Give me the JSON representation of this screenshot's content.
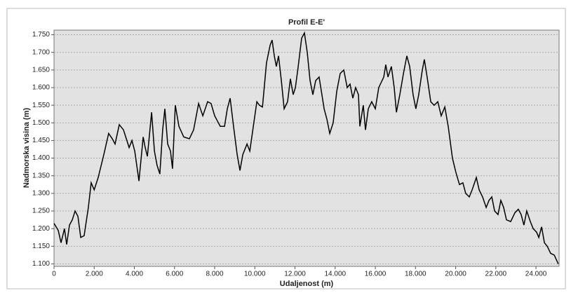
{
  "chart_data": {
    "type": "line",
    "title": "Profil E-E'",
    "xlabel": "Udaljenost (m)",
    "ylabel": "Nadmorska visina (m)",
    "x": [
      0,
      210,
      350,
      520,
      630,
      770,
      910,
      1050,
      1190,
      1330,
      1500,
      1710,
      1850,
      2000,
      2200,
      2480,
      2720,
      2900,
      3040,
      3250,
      3460,
      3740,
      3880,
      4020,
      4230,
      4440,
      4540,
      4650,
      4860,
      5000,
      5130,
      5270,
      5410,
      5520,
      5660,
      5800,
      5900,
      6040,
      6220,
      6460,
      6740,
      6950,
      7200,
      7410,
      7650,
      7820,
      8000,
      8280,
      8490,
      8630,
      8770,
      8940,
      9120,
      9260,
      9400,
      9610,
      9750,
      9950,
      10100,
      10230,
      10380,
      10580,
      10760,
      10860,
      10970,
      11070,
      11180,
      11320,
      11460,
      11630,
      11770,
      11910,
      12020,
      12160,
      12330,
      12470,
      12610,
      12750,
      12890,
      13030,
      13200,
      13340,
      13450,
      13590,
      13730,
      13900,
      14080,
      14250,
      14430,
      14600,
      14740,
      14880,
      15020,
      15160,
      15230,
      15400,
      15510,
      15650,
      15820,
      16000,
      16170,
      16420,
      16520,
      16630,
      16800,
      16940,
      17050,
      17220,
      17400,
      17570,
      17710,
      17880,
      18020,
      18160,
      18340,
      18440,
      18580,
      18760,
      18930,
      19110,
      19280,
      19460,
      19630,
      19840,
      20010,
      20190,
      20360,
      20500,
      20680,
      20820,
      21030,
      21170,
      21340,
      21520,
      21660,
      21800,
      21940,
      22110,
      22250,
      22390,
      22530,
      22740,
      22950,
      23120,
      23260,
      23400,
      23540,
      23720,
      23860,
      24030,
      24140,
      24280,
      24420,
      24560,
      24730,
      24910,
      25110
    ],
    "series": [
      {
        "name": "Profil",
        "color": "#000000",
        "values": [
          1215,
          1195,
          1160,
          1200,
          1155,
          1210,
          1225,
          1250,
          1235,
          1175,
          1180,
          1260,
          1330,
          1310,
          1345,
          1410,
          1470,
          1455,
          1440,
          1495,
          1480,
          1430,
          1450,
          1420,
          1335,
          1460,
          1430,
          1405,
          1530,
          1420,
          1380,
          1355,
          1480,
          1540,
          1440,
          1420,
          1370,
          1550,
          1490,
          1460,
          1455,
          1480,
          1555,
          1520,
          1560,
          1555,
          1520,
          1490,
          1490,
          1540,
          1570,
          1490,
          1410,
          1365,
          1410,
          1440,
          1420,
          1500,
          1560,
          1550,
          1545,
          1670,
          1720,
          1735,
          1690,
          1660,
          1690,
          1620,
          1540,
          1560,
          1625,
          1580,
          1600,
          1660,
          1740,
          1755,
          1700,
          1620,
          1580,
          1620,
          1630,
          1580,
          1540,
          1510,
          1470,
          1500,
          1590,
          1640,
          1650,
          1600,
          1610,
          1570,
          1600,
          1580,
          1490,
          1550,
          1480,
          1540,
          1560,
          1540,
          1600,
          1630,
          1665,
          1630,
          1660,
          1600,
          1530,
          1580,
          1640,
          1690,
          1660,
          1580,
          1540,
          1580,
          1650,
          1680,
          1630,
          1560,
          1550,
          1560,
          1520,
          1545,
          1490,
          1400,
          1360,
          1325,
          1330,
          1300,
          1290,
          1310,
          1345,
          1310,
          1290,
          1260,
          1280,
          1290,
          1250,
          1240,
          1280,
          1260,
          1225,
          1220,
          1245,
          1255,
          1240,
          1210,
          1250,
          1220,
          1200,
          1190,
          1175,
          1205,
          1160,
          1150,
          1130,
          1125,
          1100
        ]
      }
    ],
    "xlim": [
      0,
      25150
    ],
    "ylim": [
      1093,
      1763
    ],
    "xticks": [
      0,
      {
        "value": 2000,
        "label": "2.000"
      },
      {
        "value": 4000,
        "label": "4.000"
      },
      {
        "value": 6000,
        "label": "6.000"
      },
      {
        "value": 8000,
        "label": "8.000"
      },
      {
        "value": 10000,
        "label": "10.000"
      },
      {
        "value": 12000,
        "label": "12.000"
      },
      {
        "value": 14000,
        "label": "14.000"
      },
      {
        "value": 16000,
        "label": "16.000"
      },
      {
        "value": 18000,
        "label": "18.000"
      },
      {
        "value": 20000,
        "label": "20.000"
      },
      {
        "value": 22000,
        "label": "22.000"
      },
      {
        "value": 24000,
        "label": "24.000"
      }
    ],
    "yticks": [
      {
        "value": 1100,
        "label": "1.100"
      },
      {
        "value": 1150,
        "label": "1.150"
      },
      {
        "value": 1200,
        "label": "1.200"
      },
      {
        "value": 1250,
        "label": "1.250"
      },
      {
        "value": 1300,
        "label": "1.300"
      },
      {
        "value": 1350,
        "label": "1.350"
      },
      {
        "value": 1400,
        "label": "1.400"
      },
      {
        "value": 1450,
        "label": "1.450"
      },
      {
        "value": 1500,
        "label": "1.500"
      },
      {
        "value": 1550,
        "label": "1.550"
      },
      {
        "value": 1600,
        "label": "1.600"
      },
      {
        "value": 1650,
        "label": "1.650"
      },
      {
        "value": 1700,
        "label": "1.700"
      },
      {
        "value": 1750,
        "label": "1.750"
      }
    ],
    "grid": true
  }
}
